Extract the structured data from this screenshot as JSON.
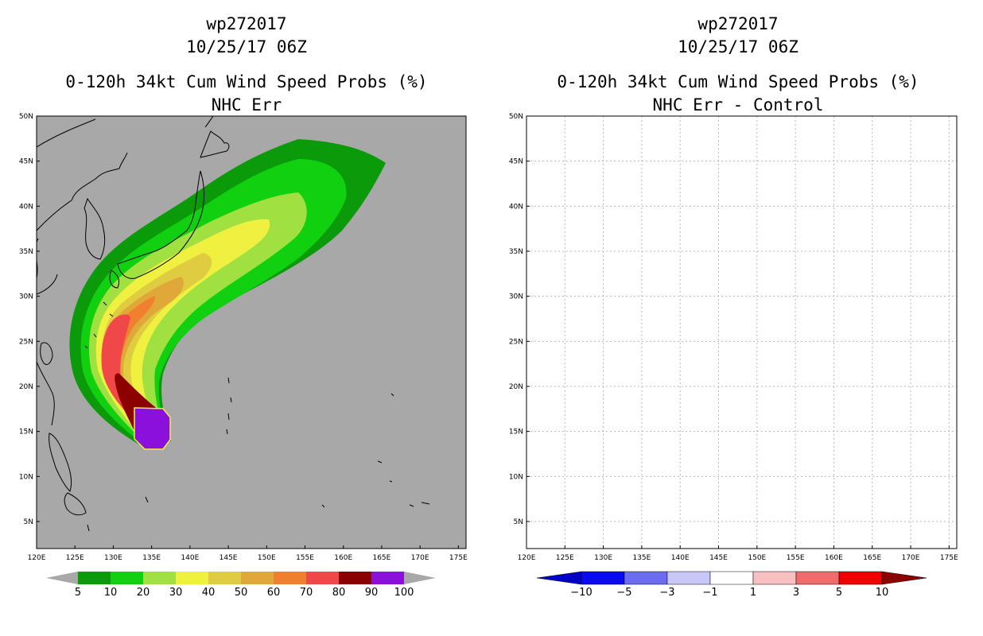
{
  "left_panel": {
    "storm_id": "wp272017",
    "datetime": "10/25/17 06Z",
    "title": "0-120h 34kt Cum Wind Speed Probs (%)",
    "subtitle": "NHC Err",
    "background_color": "#a8a8a8"
  },
  "right_panel": {
    "storm_id": "wp272017",
    "datetime": "10/25/17 06Z",
    "title": "0-120h 34kt Cum Wind Speed Probs (%)",
    "subtitle": "NHC Err - Control",
    "background_color": "#ffffff"
  },
  "axes": {
    "lon_labels": [
      "120E",
      "125E",
      "130E",
      "135E",
      "140E",
      "145E",
      "150E",
      "155E",
      "160E",
      "165E",
      "170E",
      "175E"
    ],
    "lat_labels": [
      "5N",
      "10N",
      "15N",
      "20N",
      "25N",
      "30N",
      "35N",
      "40N",
      "45N",
      "50N"
    ],
    "lon_range": [
      120,
      176
    ],
    "lat_range": [
      2,
      50
    ]
  },
  "left_colorbar": {
    "labels": [
      "5",
      "10",
      "20",
      "30",
      "40",
      "50",
      "60",
      "70",
      "80",
      "90",
      "100"
    ],
    "colors": [
      "#0a9a0a",
      "#10d010",
      "#a0e040",
      "#f0f040",
      "#e0cc40",
      "#e0a838",
      "#f08030",
      "#f04848",
      "#8c0000",
      "#8c10dc"
    ]
  },
  "right_colorbar": {
    "labels": [
      "-10",
      "-5",
      "-3",
      "-1",
      "1",
      "3",
      "5",
      "10"
    ],
    "colors": [
      "#0000c8",
      "#0a0af0",
      "#6c6cf0",
      "#c8c8f8",
      "#ffffff",
      "#f8c0c0",
      "#f06c6c",
      "#f00000",
      "#8c0000"
    ]
  }
}
